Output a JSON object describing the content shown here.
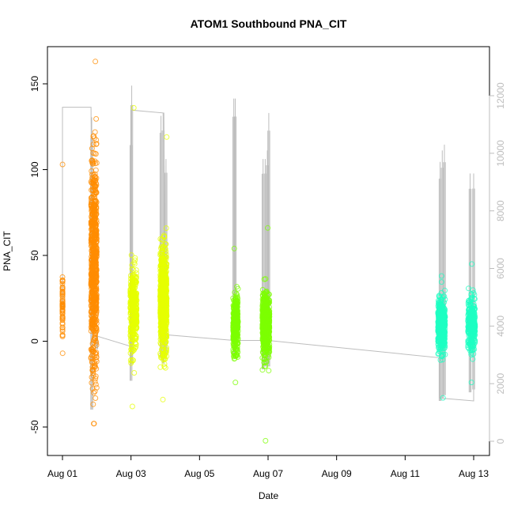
{
  "chart_data": {
    "type": "scatter",
    "title": "ATOM1 Southbound PNA_CIT",
    "xlabel": "Date",
    "ylabel": "PNA_CIT",
    "x_unit": "date",
    "xlim": [
      "2015-08-01T00:00",
      "2015-08-13T00:00"
    ],
    "x_ticks": [
      {
        "value": "2015-08-01T00:00",
        "label": "Aug 01"
      },
      {
        "value": "2015-08-03T00:00",
        "label": "Aug 03"
      },
      {
        "value": "2015-08-05T00:00",
        "label": "Aug 05"
      },
      {
        "value": "2015-08-07T00:00",
        "label": "Aug 07"
      },
      {
        "value": "2015-08-09T00:00",
        "label": "Aug 09"
      },
      {
        "value": "2015-08-11T00:00",
        "label": "Aug 11"
      },
      {
        "value": "2015-08-13T00:00",
        "label": "Aug 13"
      }
    ],
    "ylim": [
      -65,
      172
    ],
    "y_ticks": [
      -50,
      0,
      50,
      100,
      150
    ],
    "y2lim": [
      -200,
      12800
    ],
    "y2_ticks": [
      0,
      2000,
      4000,
      6000,
      8000,
      10000,
      12000
    ],
    "grid": false,
    "legend": "none",
    "point_style": "open-circle",
    "clusters": [
      {
        "start": "2015-08-01T00:00",
        "end": "2015-08-01T00:06",
        "center": 20,
        "spread": 14,
        "min": -7,
        "max": 103,
        "color": "#ff8c00",
        "n": 60
      },
      {
        "start": "2015-08-01T20:00",
        "end": "2015-08-02T00:00",
        "center": 45,
        "spread": 45,
        "min": -48,
        "max": 163,
        "color": "#ff8c00",
        "n": 700
      },
      {
        "start": "2015-08-02T23:30",
        "end": "2015-08-03T04:00",
        "center": 20,
        "spread": 17,
        "min": -38,
        "max": 136,
        "color": "#e6ff00",
        "n": 350
      },
      {
        "start": "2015-08-03T20:30",
        "end": "2015-08-04T01:00",
        "center": 25,
        "spread": 22,
        "min": -34,
        "max": 119,
        "color": "#e6ff00",
        "n": 650
      },
      {
        "start": "2015-08-05T23:30",
        "end": "2015-08-06T03:00",
        "center": 10,
        "spread": 12,
        "min": -24,
        "max": 54,
        "color": "#7cff00",
        "n": 300
      },
      {
        "start": "2015-08-06T20:00",
        "end": "2015-08-07T01:00",
        "center": 10,
        "spread": 13,
        "min": -58,
        "max": 66,
        "color": "#7cff00",
        "n": 550
      },
      {
        "start": "2015-08-11T23:00",
        "end": "2015-08-12T04:00",
        "center": 10,
        "spread": 11,
        "min": -33,
        "max": 38,
        "color": "#1effc3",
        "n": 450
      },
      {
        "start": "2015-08-12T20:00",
        "end": "2015-08-13T01:00",
        "center": 10,
        "spread": 11,
        "min": -24,
        "max": 45,
        "color": "#1effc3",
        "n": 300
      }
    ],
    "secondary_series": {
      "axis": "right",
      "color": "#bdbdbd",
      "spikes": [
        {
          "x": "2015-08-01T20:30",
          "low": 1100,
          "high": 11250
        },
        {
          "x": "2015-08-02T00:00",
          "low": 3200,
          "high": 3700
        },
        {
          "x": "2015-08-03T00:00",
          "low": 2100,
          "high": 10900
        },
        {
          "x": "2015-08-03T00:30",
          "low": 2700,
          "high": 12350
        },
        {
          "x": "2015-08-03T21:00",
          "low": 2900,
          "high": 11300
        },
        {
          "x": "2015-08-03T22:30",
          "low": 2700,
          "high": 11400
        },
        {
          "x": "2015-08-04T00:30",
          "low": 3000,
          "high": 9800
        },
        {
          "x": "2015-08-06T00:00",
          "low": 2900,
          "high": 11900
        },
        {
          "x": "2015-08-06T01:00",
          "low": 3000,
          "high": 11900
        },
        {
          "x": "2015-08-06T20:30",
          "low": 2500,
          "high": 9800
        },
        {
          "x": "2015-08-06T22:00",
          "low": 2600,
          "high": 9800
        },
        {
          "x": "2015-08-06T23:30",
          "low": 2700,
          "high": 10100
        },
        {
          "x": "2015-08-07T00:30",
          "low": 2600,
          "high": 11400
        },
        {
          "x": "2015-08-12T00:30",
          "low": 1400,
          "high": 9700
        },
        {
          "x": "2015-08-12T02:00",
          "low": 1500,
          "high": 10100
        },
        {
          "x": "2015-08-12T03:30",
          "low": 1600,
          "high": 10300
        },
        {
          "x": "2015-08-12T21:30",
          "low": 1700,
          "high": 9300
        },
        {
          "x": "2015-08-13T00:00",
          "low": 1800,
          "high": 9300
        }
      ],
      "line": [
        {
          "x": "2015-08-01T00:00",
          "y": 4600
        },
        {
          "x": "2015-08-01T00:00",
          "y": 11600
        },
        {
          "x": "2015-08-01T20:00",
          "y": 11600
        },
        {
          "x": "2015-08-01T21:00",
          "y": 3700
        },
        {
          "x": "2015-08-02T23:30",
          "y": 3300
        },
        {
          "x": "2015-08-03T00:00",
          "y": 11500
        },
        {
          "x": "2015-08-03T23:00",
          "y": 11400
        },
        {
          "x": "2015-08-04T00:00",
          "y": 3700
        },
        {
          "x": "2015-08-06T00:00",
          "y": 3500
        },
        {
          "x": "2015-08-07T00:00",
          "y": 3500
        },
        {
          "x": "2015-08-12T00:00",
          "y": 2900
        },
        {
          "x": "2015-08-12T00:00",
          "y": 1500
        },
        {
          "x": "2015-08-13T00:00",
          "y": 1400
        },
        {
          "x": "2015-08-13T00:00",
          "y": 2600
        }
      ]
    }
  }
}
